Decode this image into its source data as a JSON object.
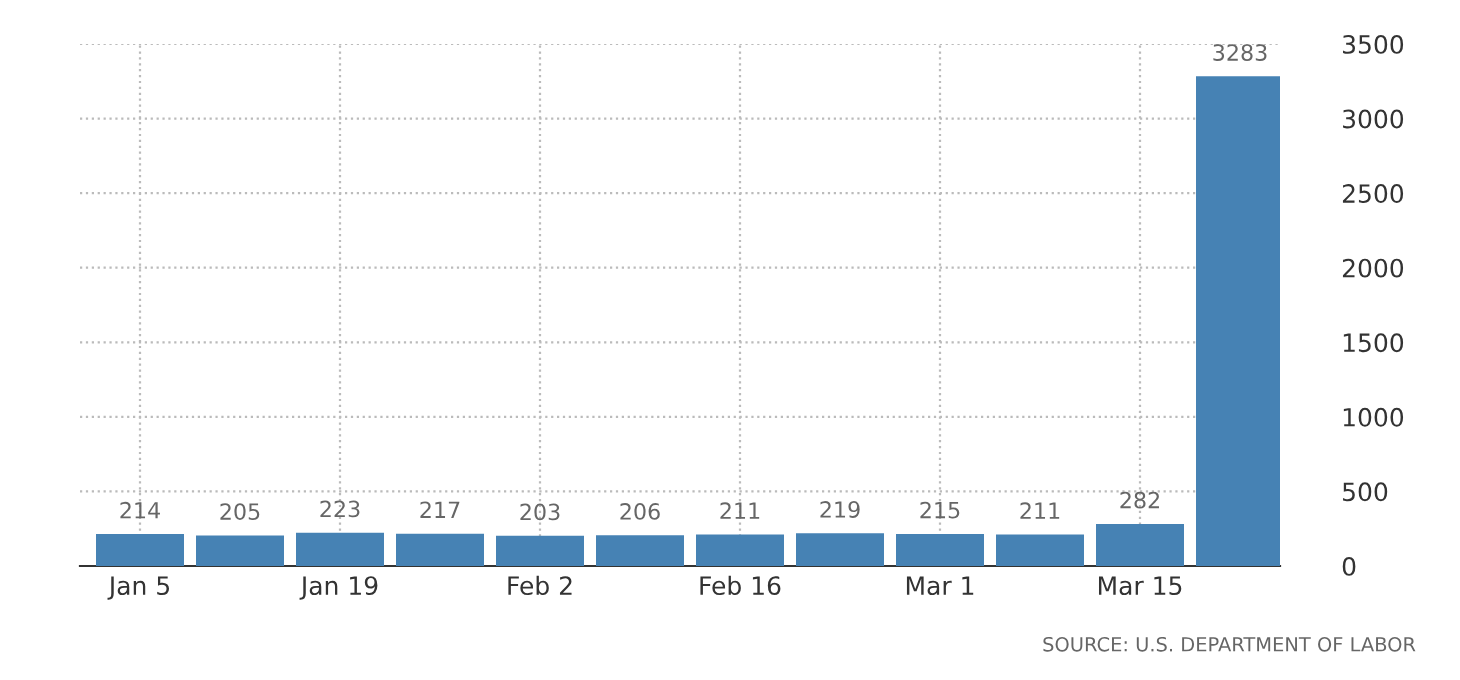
{
  "chart_data": {
    "type": "bar",
    "categories": [
      "Jan 5",
      null,
      "Jan 19",
      null,
      "Feb 2",
      null,
      "Feb 16",
      null,
      "Mar 1",
      null,
      "Mar 15",
      null
    ],
    "values": [
      214,
      205,
      223,
      217,
      203,
      206,
      211,
      219,
      215,
      211,
      282,
      3283
    ],
    "color": "#4682b4",
    "ylim": [
      0,
      3500
    ],
    "yticks": [
      0,
      500,
      1000,
      1500,
      2000,
      2500,
      3000,
      3500
    ],
    "grid": true,
    "data_labels": true,
    "annotations": [
      "SOURCE: U.S. DEPARTMENT OF LABOR"
    ]
  }
}
